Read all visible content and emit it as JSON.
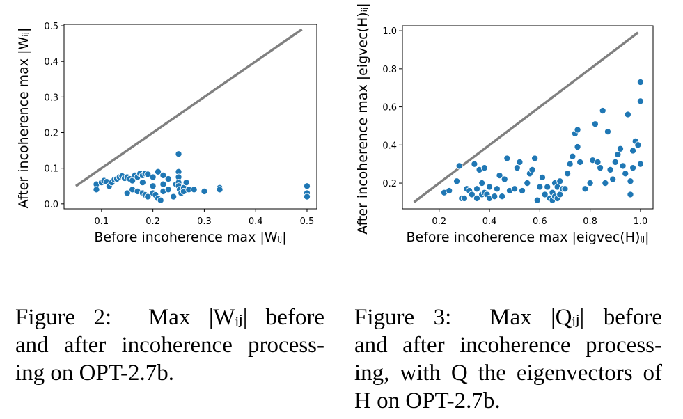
{
  "chart_data": [
    {
      "type": "scatter",
      "xlabel": "Before incoherence max |Wᵢⱼ|",
      "ylabel": "After incoherence max |Wᵢⱼ|",
      "xlim": [
        0.027,
        0.519
      ],
      "ylim": [
        -0.014,
        0.504
      ],
      "xticks": [
        0.1,
        0.2,
        0.3,
        0.4,
        0.5
      ],
      "yticks": [
        {
          "value": 0,
          "label": "0.0"
        },
        0.1,
        0.2,
        0.3,
        0.4,
        0.5
      ],
      "line": {
        "x": [
          0.05,
          0.49
        ],
        "y": [
          0.05,
          0.49
        ],
        "color": "#808080"
      },
      "series": [
        {
          "color": "#1f77b4",
          "x": [
            0.09,
            0.09,
            0.1,
            0.105,
            0.11,
            0.115,
            0.12,
            0.125,
            0.13,
            0.135,
            0.14,
            0.145,
            0.15,
            0.155,
            0.16,
            0.165,
            0.17,
            0.175,
            0.18,
            0.185,
            0.19,
            0.2,
            0.21,
            0.22,
            0.23,
            0.15,
            0.16,
            0.17,
            0.18,
            0.185,
            0.19,
            0.2,
            0.205,
            0.21,
            0.215,
            0.22,
            0.23,
            0.24,
            0.245,
            0.25,
            0.25,
            0.25,
            0.25,
            0.25,
            0.252,
            0.255,
            0.26,
            0.26,
            0.265,
            0.27,
            0.28,
            0.3,
            0.33,
            0.33,
            0.5,
            0.5,
            0.5,
            0.18,
            0.2,
            0.22
          ],
          "y": [
            0.055,
            0.04,
            0.06,
            0.065,
            0.062,
            0.05,
            0.06,
            0.068,
            0.07,
            0.075,
            0.078,
            0.072,
            0.075,
            0.07,
            0.065,
            0.08,
            0.075,
            0.085,
            0.08,
            0.085,
            0.083,
            0.075,
            0.09,
            0.08,
            0.07,
            0.03,
            0.04,
            0.035,
            0.03,
            0.025,
            0.02,
            0.03,
            0.025,
            0.015,
            0.01,
            0.035,
            0.04,
            0.02,
            0.055,
            0.14,
            0.09,
            0.075,
            0.06,
            0.05,
            0.04,
            0.03,
            0.045,
            0.035,
            0.06,
            0.04,
            0.04,
            0.035,
            0.045,
            0.04,
            0.05,
            0.03,
            0.02,
            0.06,
            0.05,
            0.055
          ]
        }
      ]
    },
    {
      "type": "scatter",
      "xlabel": "Before incoherence max |eigvec(H)ᵢⱼ|",
      "ylabel": "After incoherence max |eigvec(H)ᵢⱼ|",
      "xlim": [
        0.054,
        1.05
      ],
      "ylim": [
        0.065,
        1.026
      ],
      "xticks": [
        0.2,
        0.4,
        0.6,
        0.8,
        {
          "value": 1,
          "label": "1.0"
        }
      ],
      "yticks": [
        0.2,
        0.4,
        0.6,
        0.8,
        {
          "value": 1,
          "label": "1.0"
        }
      ],
      "line": {
        "x": [
          0.1,
          0.99
        ],
        "y": [
          0.1,
          0.99
        ],
        "color": "#808080"
      },
      "series": [
        {
          "color": "#1f77b4",
          "x": [
            0.22,
            0.24,
            0.27,
            0.28,
            0.29,
            0.3,
            0.31,
            0.32,
            0.33,
            0.34,
            0.35,
            0.35,
            0.36,
            0.37,
            0.37,
            0.38,
            0.38,
            0.39,
            0.4,
            0.4,
            0.42,
            0.43,
            0.44,
            0.45,
            0.46,
            0.47,
            0.48,
            0.5,
            0.51,
            0.52,
            0.53,
            0.55,
            0.56,
            0.57,
            0.58,
            0.59,
            0.6,
            0.61,
            0.62,
            0.63,
            0.64,
            0.65,
            0.65,
            0.66,
            0.66,
            0.67,
            0.67,
            0.68,
            0.68,
            0.69,
            0.7,
            0.71,
            0.72,
            0.73,
            0.74,
            0.75,
            0.75,
            0.76,
            0.78,
            0.8,
            0.81,
            0.82,
            0.83,
            0.84,
            0.85,
            0.86,
            0.87,
            0.88,
            0.89,
            0.9,
            0.91,
            0.92,
            0.93,
            0.94,
            0.95,
            0.96,
            0.97,
            0.98,
            0.99,
            1.0,
            1.0,
            1.0,
            0.97,
            0.96
          ],
          "y": [
            0.15,
            0.16,
            0.21,
            0.29,
            0.12,
            0.12,
            0.17,
            0.16,
            0.14,
            0.3,
            0.17,
            0.12,
            0.27,
            0.14,
            0.2,
            0.28,
            0.15,
            0.14,
            0.18,
            0.12,
            0.13,
            0.17,
            0.24,
            0.13,
            0.22,
            0.33,
            0.16,
            0.17,
            0.28,
            0.31,
            0.16,
            0.2,
            0.25,
            0.27,
            0.33,
            0.11,
            0.18,
            0.23,
            0.14,
            0.18,
            0.12,
            0.15,
            0.11,
            0.13,
            0.2,
            0.12,
            0.18,
            0.14,
            0.21,
            0.17,
            0.17,
            0.25,
            0.3,
            0.34,
            0.46,
            0.48,
            0.39,
            0.31,
            0.17,
            0.2,
            0.32,
            0.51,
            0.31,
            0.28,
            0.58,
            0.2,
            0.47,
            0.27,
            0.22,
            0.31,
            0.35,
            0.38,
            0.29,
            0.25,
            0.56,
            0.14,
            0.37,
            0.42,
            0.4,
            0.73,
            0.63,
            0.3,
            0.28,
            0.21
          ]
        }
      ]
    }
  ],
  "captions": [
    {
      "lines": [
        "Figure 2:  Max |Wᵢⱼ| before",
        "and after incoherence process-",
        "ing on OPT-2.7b."
      ]
    },
    {
      "lines": [
        "Figure 3:  Max |Qᵢⱼ| before",
        "and after incoherence process-",
        "ing, with Q the eigenvectors of",
        "H on OPT-2.7b."
      ]
    }
  ]
}
